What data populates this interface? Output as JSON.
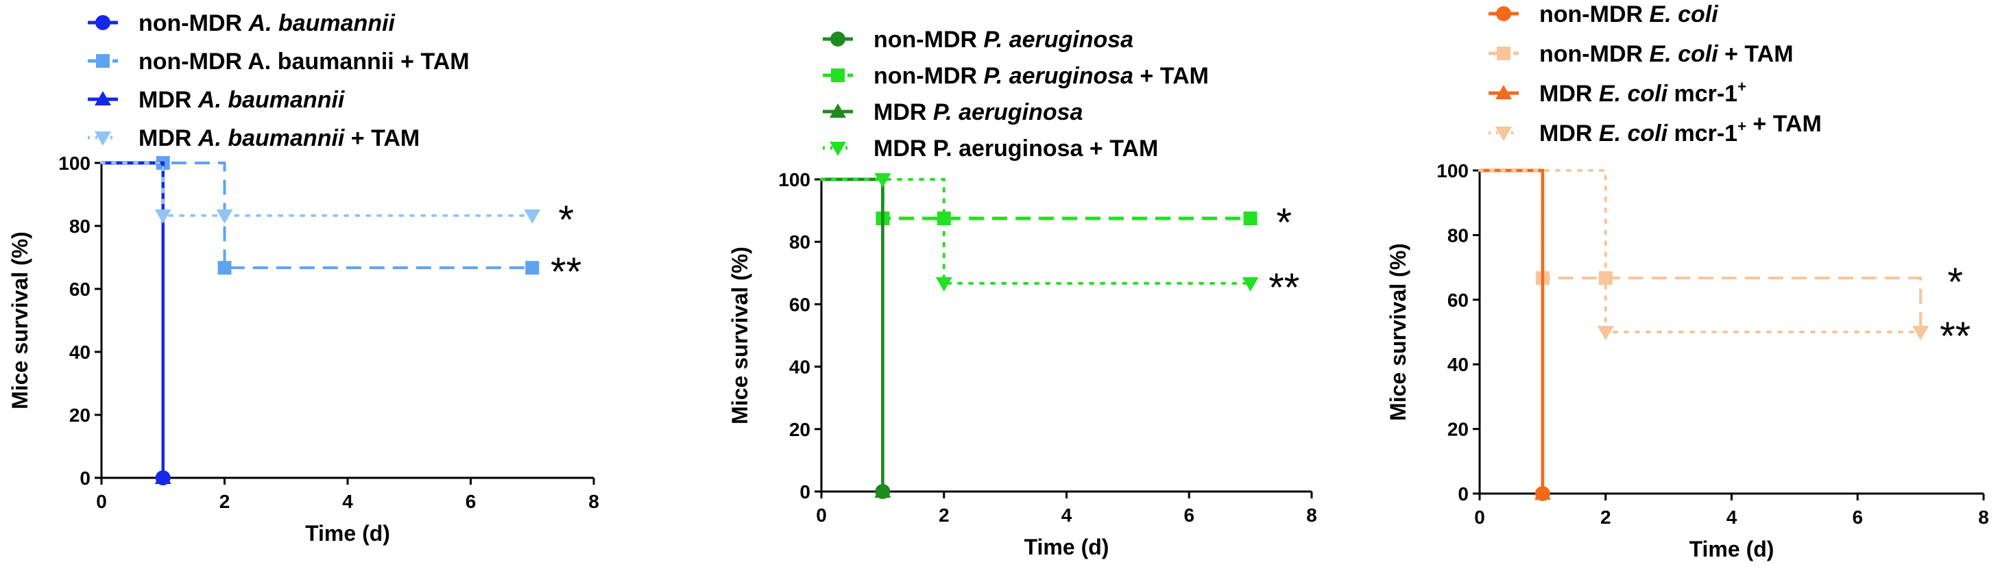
{
  "chart_data": [
    {
      "type": "line",
      "chart_kind": "kaplan-meier survival",
      "xlabel": "Time (d)",
      "ylabel": "Mice survival (%)",
      "xlim": [
        0,
        8
      ],
      "ylim": [
        0,
        100
      ],
      "xticks": [
        0,
        2,
        4,
        6,
        8
      ],
      "yticks": [
        0,
        20,
        40,
        60,
        80,
        100
      ],
      "legend_position": "top",
      "series": [
        {
          "name": "non-MDR A. baumannii",
          "legend": [
            {
              "text": "non-MDR ",
              "italic": false
            },
            {
              "text": "A. baumannii",
              "italic": true
            }
          ],
          "color": "#1428e6",
          "style": "solid",
          "marker": "circle",
          "width": 4.5,
          "x": [
            0,
            1
          ],
          "y": [
            100,
            0
          ],
          "marks": [
            [
              1,
              0
            ]
          ]
        },
        {
          "name": "non-MDR A. baumannii + TAM",
          "legend": [
            {
              "text": "non-MDR A. baumannii + TAM",
              "italic": false
            }
          ],
          "color": "#5fa3f0",
          "style": "dashed",
          "marker": "square",
          "width": 4,
          "x": [
            0,
            2,
            7
          ],
          "y": [
            100,
            66.7,
            66.7
          ],
          "marks": [
            [
              1,
              100
            ],
            [
              2,
              66.7
            ],
            [
              7,
              66.7
            ]
          ]
        },
        {
          "name": "MDR A. baumannii",
          "legend": [
            {
              "text": "MDR ",
              "italic": false
            },
            {
              "text": "A. baumannii",
              "italic": true
            }
          ],
          "color": "#1428e6",
          "style": "solid",
          "marker": "triangle",
          "width": 4.5,
          "x": [
            0,
            1
          ],
          "y": [
            100,
            0
          ],
          "marks": [
            [
              1,
              0
            ]
          ]
        },
        {
          "name": "MDR A. baumannii + TAM",
          "legend": [
            {
              "text": "MDR ",
              "italic": false
            },
            {
              "text": "A. baumannii",
              "italic": true
            },
            {
              "text": " + TAM",
              "italic": false
            }
          ],
          "color": "#90c4f5",
          "style": "dotted",
          "marker": "triangle-down",
          "width": 4,
          "x": [
            0,
            1,
            7
          ],
          "y": [
            100,
            83.3,
            83.3
          ],
          "marks": [
            [
              1,
              83.3
            ],
            [
              2,
              83.3
            ],
            [
              7,
              83.3
            ]
          ]
        }
      ],
      "annotations": [
        {
          "text": "*",
          "x": 7.55,
          "y": 83.3
        },
        {
          "text": "**",
          "x": 7.55,
          "y": 66.7
        }
      ]
    },
    {
      "type": "line",
      "chart_kind": "kaplan-meier survival",
      "xlabel": "Time (d)",
      "ylabel": "Mice survival (%)",
      "xlim": [
        0,
        8
      ],
      "ylim": [
        0,
        100
      ],
      "xticks": [
        0,
        2,
        4,
        6,
        8
      ],
      "yticks": [
        0,
        20,
        40,
        60,
        80,
        100
      ],
      "legend_position": "top",
      "series": [
        {
          "name": "non-MDR P. aeruginosa",
          "legend": [
            {
              "text": "non-MDR ",
              "italic": false
            },
            {
              "text": "P. aeruginosa",
              "italic": true
            }
          ],
          "color": "#1f8a1f",
          "style": "solid",
          "marker": "circle",
          "width": 4.5,
          "x": [
            0,
            1
          ],
          "y": [
            100,
            0
          ],
          "marks": [
            [
              1,
              0
            ]
          ]
        },
        {
          "name": "non-MDR P. aeruginosa + TAM",
          "legend": [
            {
              "text": "non-MDR ",
              "italic": false
            },
            {
              "text": "P. aeruginosa",
              "italic": true
            },
            {
              "text": " + TAM",
              "italic": false
            }
          ],
          "color": "#22e022",
          "style": "dashed",
          "marker": "square",
          "width": 5,
          "x": [
            0,
            1,
            7
          ],
          "y": [
            100,
            87.5,
            87.5
          ],
          "marks": [
            [
              1,
              87.5
            ],
            [
              2,
              87.5
            ],
            [
              7,
              87.5
            ]
          ]
        },
        {
          "name": "MDR P. aeruginosa",
          "legend": [
            {
              "text": "MDR ",
              "italic": false
            },
            {
              "text": "P. aeruginosa",
              "italic": true
            }
          ],
          "color": "#1f8a1f",
          "style": "solid",
          "marker": "triangle",
          "width": 4.5,
          "x": [
            0,
            1
          ],
          "y": [
            100,
            0
          ],
          "marks": [
            [
              1,
              0
            ]
          ]
        },
        {
          "name": "MDR P. aeruginosa + TAM",
          "legend": [
            {
              "text": "MDR P. aeruginosa + TAM",
              "italic": false
            }
          ],
          "color": "#22e022",
          "style": "dotted",
          "marker": "triangle-down",
          "width": 4,
          "x": [
            0,
            2,
            7
          ],
          "y": [
            100,
            66.7,
            66.7
          ],
          "marks": [
            [
              1,
              100
            ],
            [
              2,
              66.7
            ],
            [
              7,
              66.7
            ]
          ]
        }
      ],
      "annotations": [
        {
          "text": "*",
          "x": 7.55,
          "y": 87.5
        },
        {
          "text": "**",
          "x": 7.55,
          "y": 66.7
        }
      ]
    },
    {
      "type": "line",
      "chart_kind": "kaplan-meier survival",
      "xlabel": "Time (d)",
      "ylabel": "Mice survival (%)",
      "xlim": [
        0,
        8
      ],
      "ylim": [
        0,
        100
      ],
      "xticks": [
        0,
        2,
        4,
        6,
        8
      ],
      "yticks": [
        0,
        20,
        40,
        60,
        80,
        100
      ],
      "legend_position": "top",
      "series": [
        {
          "name": "non-MDR E. coli",
          "legend": [
            {
              "text": "non-MDR ",
              "italic": false
            },
            {
              "text": "E. coli",
              "italic": true
            }
          ],
          "color": "#f26a1b",
          "style": "solid",
          "marker": "circle",
          "width": 4.5,
          "x": [
            0,
            1
          ],
          "y": [
            100,
            0
          ],
          "marks": [
            [
              1,
              0
            ]
          ]
        },
        {
          "name": "non-MDR E. coli + TAM",
          "legend": [
            {
              "text": "non-MDR ",
              "italic": false
            },
            {
              "text": "E. coli",
              "italic": true
            },
            {
              "text": " + TAM",
              "italic": false
            }
          ],
          "color": "#f8c49a",
          "style": "dashed",
          "marker": "square",
          "width": 4,
          "x": [
            0,
            1,
            7,
            7
          ],
          "y": [
            100,
            66.7,
            66.7,
            50
          ],
          "marks": [
            [
              1,
              66.7
            ],
            [
              2,
              66.7
            ]
          ]
        },
        {
          "name": "MDR E. coli mcr-1+",
          "legend": [
            {
              "text": "MDR ",
              "italic": false
            },
            {
              "text": "E. coli",
              "italic": true
            },
            {
              "text": " mcr-1",
              "italic": false
            },
            {
              "text": "+",
              "italic": false,
              "sup": true
            }
          ],
          "color": "#f26a1b",
          "style": "solid",
          "marker": "triangle",
          "width": 4.5,
          "x": [
            0,
            1
          ],
          "y": [
            100,
            0
          ],
          "marks": [
            [
              1,
              0
            ]
          ]
        },
        {
          "name": "MDR E. coli mcr-1+ + TAM",
          "legend": [
            {
              "text": "MDR ",
              "italic": false
            },
            {
              "text": "E. coli",
              "italic": true
            },
            {
              "text": " mcr-1",
              "italic": false
            },
            {
              "text": "+",
              "italic": false,
              "sup": true
            },
            {
              "text": " + TAM",
              "italic": false
            }
          ],
          "color": "#f8c49a",
          "style": "dotted",
          "marker": "triangle-down",
          "width": 4,
          "x": [
            0,
            2,
            7
          ],
          "y": [
            100,
            50,
            50
          ],
          "marks": [
            [
              2,
              50
            ],
            [
              7,
              50
            ]
          ]
        }
      ],
      "annotations": [
        {
          "text": "*",
          "x": 7.55,
          "y": 66.7
        },
        {
          "text": "**",
          "x": 7.55,
          "y": 50
        }
      ]
    }
  ]
}
